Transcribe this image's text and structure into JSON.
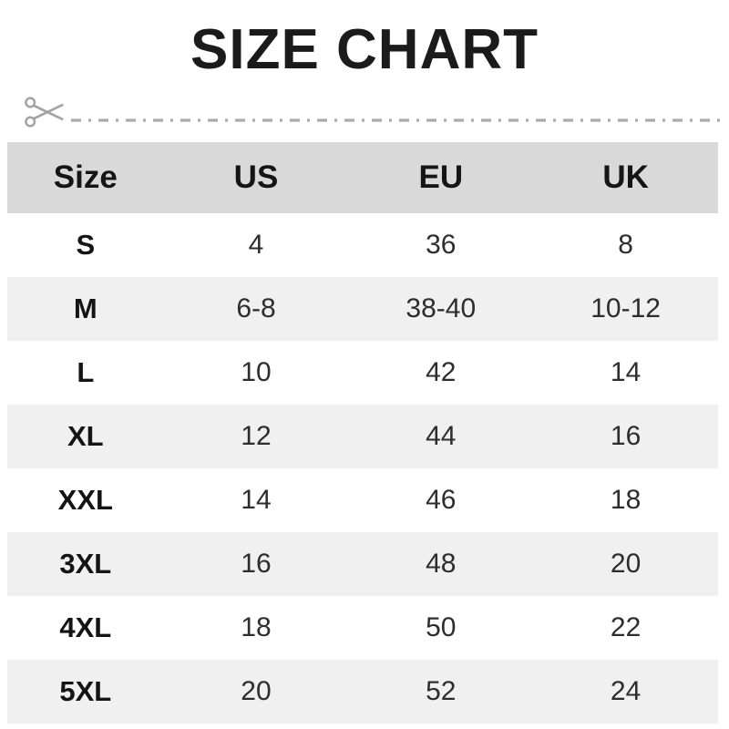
{
  "title": "SIZE CHART",
  "cutline": {
    "icon": "scissors",
    "color": "#a3a3a3"
  },
  "table": {
    "headers": [
      "Size",
      "US",
      "EU",
      "UK"
    ],
    "rows": [
      [
        "S",
        "4",
        "36",
        "8"
      ],
      [
        "M",
        "6-8",
        "38-40",
        "10-12"
      ],
      [
        "L",
        "10",
        "42",
        "14"
      ],
      [
        "XL",
        "12",
        "44",
        "16"
      ],
      [
        "XXL",
        "14",
        "46",
        "18"
      ],
      [
        "3XL",
        "16",
        "48",
        "20"
      ],
      [
        "4XL",
        "18",
        "50",
        "22"
      ],
      [
        "5XL",
        "20",
        "52",
        "24"
      ]
    ]
  },
  "colors": {
    "header_bg": "#d9d9d9",
    "alt_row_bg": "#f0f0f0",
    "row_bg": "#ffffff",
    "title_text": "#1b1b1b",
    "cell_text": "#2d2d2d",
    "cutline_gray": "#a3a3a3"
  },
  "chart_data": {
    "type": "table",
    "title": "SIZE CHART",
    "columns": [
      "Size",
      "US",
      "EU",
      "UK"
    ],
    "rows": [
      {
        "size": "S",
        "us": "4",
        "eu": "36",
        "uk": "8"
      },
      {
        "size": "M",
        "us": "6-8",
        "eu": "38-40",
        "uk": "10-12"
      },
      {
        "size": "L",
        "us": "10",
        "eu": "42",
        "uk": "14"
      },
      {
        "size": "XL",
        "us": "12",
        "eu": "44",
        "uk": "16"
      },
      {
        "size": "XXL",
        "us": "14",
        "eu": "46",
        "uk": "18"
      },
      {
        "size": "3XL",
        "us": "16",
        "eu": "48",
        "uk": "20"
      },
      {
        "size": "4XL",
        "us": "18",
        "eu": "50",
        "uk": "22"
      },
      {
        "size": "5XL",
        "us": "20",
        "eu": "52",
        "uk": "24"
      }
    ],
    "layout_hints": {
      "header_background": "#d9d9d9",
      "alternating_rows": true,
      "first_data_row_background": "#ffffff",
      "alternate_row_background": "#f0f0f0",
      "grid": false
    }
  }
}
